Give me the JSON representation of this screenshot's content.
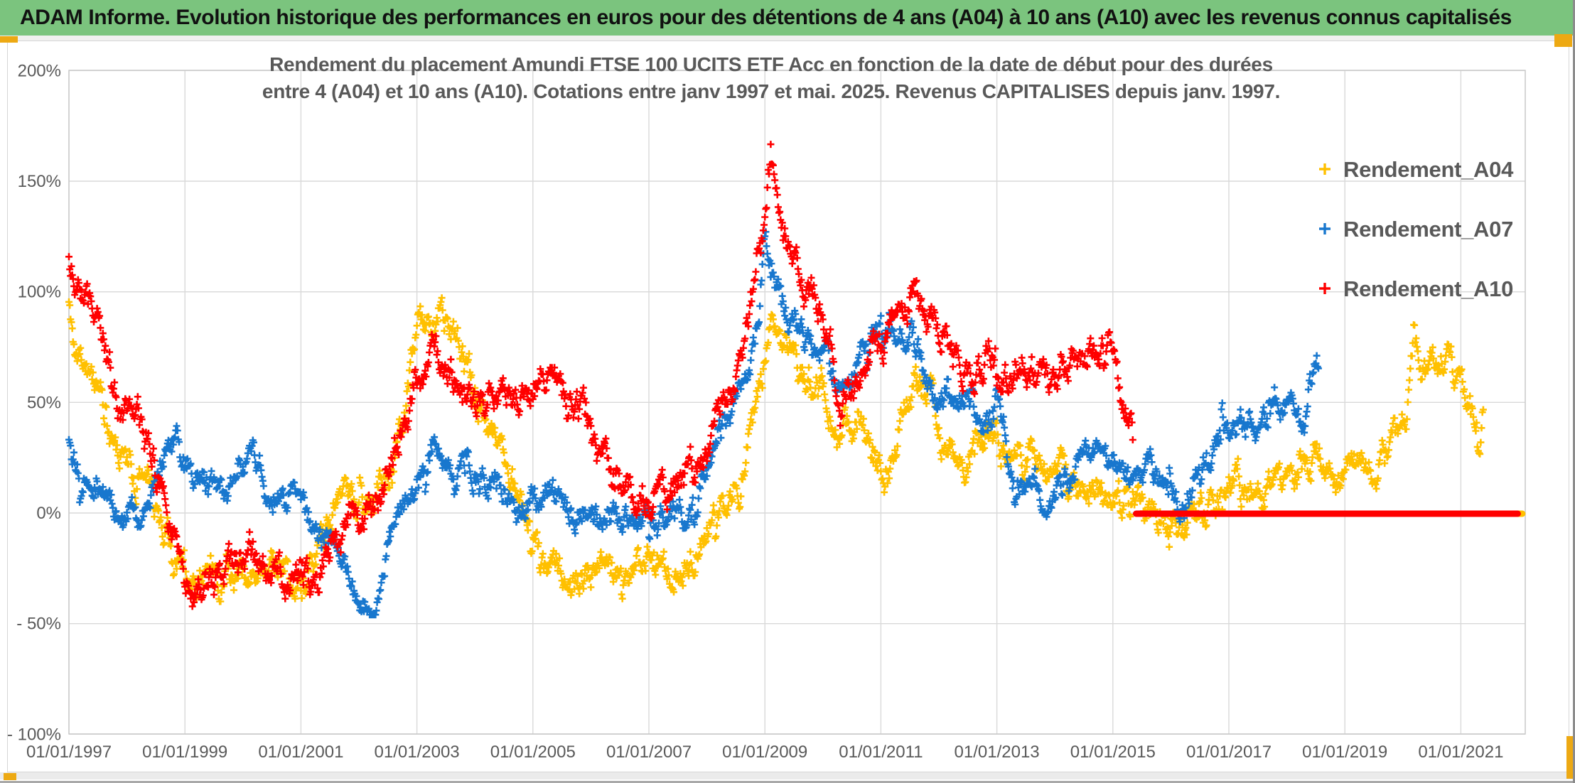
{
  "header": {
    "title": "ADAM Informe. Evolution historique des performances en euros pour des détentions de 4 ans (A04) à 10 ans (A10) avec les revenus connus capitalisés",
    "bg_color": "#7bc47e"
  },
  "accents": {
    "color": "#eda913"
  },
  "chart_data": {
    "type": "scatter",
    "marker": "plus",
    "title_line1": "Rendement du placement Amundi FTSE 100 UCITS ETF Acc en fonction de la date de début pour des durées",
    "title_line2": "entre 4 (A04) et 10 ans (A10). Cotations entre janv 1997 et mai. 2025. Revenus CAPITALISES depuis janv. 1997.",
    "title_color": "#595959",
    "grid": true,
    "grid_color": "#d9d9d9",
    "axis_label_color": "#595959",
    "x_axis": {
      "tick_years": [
        1997,
        1999,
        2001,
        2003,
        2005,
        2007,
        2009,
        2011,
        2013,
        2015,
        2017,
        2019,
        2021
      ],
      "tick_labels": [
        "01/01/1997",
        "01/01/1999",
        "01/01/2001",
        "01/01/2003",
        "01/01/2005",
        "01/01/2007",
        "01/01/2009",
        "01/01/2011",
        "01/01/2013",
        "01/01/2015",
        "01/01/2017",
        "01/01/2019",
        "01/01/2021"
      ],
      "range_years": [
        1997.0,
        2022.12
      ]
    },
    "y_axis": {
      "tick_values": [
        200,
        150,
        100,
        50,
        0,
        -50,
        -100
      ],
      "tick_labels": [
        "200%",
        "150%",
        "100%",
        "50%",
        "0%",
        "- 50%",
        "- 100%"
      ],
      "range_pct": [
        -100,
        200
      ]
    },
    "legend": {
      "position": "right",
      "entries": [
        {
          "label": "Rendement_A04",
          "color": "#FFC000"
        },
        {
          "label": "Rendement_A07",
          "color": "#1877CE"
        },
        {
          "label": "Rendement_A10",
          "color": "#FF0000"
        }
      ]
    },
    "series": [
      {
        "name": "Rendement_A04",
        "color": "#FFC000",
        "noise": 5.5,
        "seed": 11,
        "clamp": [
          -40,
          104
        ],
        "zero_segment": [
          2021.46,
          2022.06
        ],
        "keypoints": [
          [
            1997.0,
            95
          ],
          [
            1997.15,
            72
          ],
          [
            1997.35,
            60
          ],
          [
            1997.55,
            48
          ],
          [
            1997.75,
            30
          ],
          [
            1998.0,
            22
          ],
          [
            1998.3,
            12
          ],
          [
            1998.55,
            0
          ],
          [
            1998.8,
            -15
          ],
          [
            1999.05,
            -24
          ],
          [
            1999.3,
            -27
          ],
          [
            1999.6,
            -27
          ],
          [
            1999.9,
            -28
          ],
          [
            2000.2,
            -24
          ],
          [
            2000.45,
            -28
          ],
          [
            2000.7,
            -26
          ],
          [
            2001.0,
            -28
          ],
          [
            2001.3,
            -22
          ],
          [
            2001.6,
            2
          ],
          [
            2001.8,
            10
          ],
          [
            2002.0,
            4
          ],
          [
            2002.3,
            6
          ],
          [
            2002.55,
            15
          ],
          [
            2002.8,
            45
          ],
          [
            2003.05,
            92
          ],
          [
            2003.3,
            85
          ],
          [
            2003.55,
            84
          ],
          [
            2003.8,
            72
          ],
          [
            2004.0,
            52
          ],
          [
            2004.25,
            38
          ],
          [
            2004.5,
            22
          ],
          [
            2004.75,
            8
          ],
          [
            2005.0,
            -8
          ],
          [
            2005.2,
            -20
          ],
          [
            2005.45,
            -30
          ],
          [
            2005.7,
            -34
          ],
          [
            2006.0,
            -27
          ],
          [
            2006.3,
            -25
          ],
          [
            2006.6,
            -24
          ],
          [
            2007.0,
            -24
          ],
          [
            2007.3,
            -28
          ],
          [
            2007.55,
            -30
          ],
          [
            2007.8,
            -18
          ],
          [
            2008.05,
            -3
          ],
          [
            2008.3,
            -2
          ],
          [
            2008.55,
            8
          ],
          [
            2008.75,
            30
          ],
          [
            2008.95,
            62
          ],
          [
            2009.1,
            92
          ],
          [
            2009.25,
            80
          ],
          [
            2009.45,
            70
          ],
          [
            2009.65,
            62
          ],
          [
            2009.85,
            55
          ],
          [
            2010.05,
            50
          ],
          [
            2010.25,
            32
          ],
          [
            2010.45,
            40
          ],
          [
            2010.65,
            42
          ],
          [
            2010.85,
            25
          ],
          [
            2011.05,
            15
          ],
          [
            2011.25,
            30
          ],
          [
            2011.45,
            50
          ],
          [
            2011.65,
            60
          ],
          [
            2011.85,
            52
          ],
          [
            2012.05,
            25
          ],
          [
            2012.3,
            22
          ],
          [
            2012.55,
            25
          ],
          [
            2012.8,
            28
          ],
          [
            2013.0,
            35
          ],
          [
            2013.2,
            28
          ],
          [
            2013.45,
            25
          ],
          [
            2013.7,
            22
          ],
          [
            2014.0,
            18
          ],
          [
            2014.3,
            15
          ],
          [
            2014.6,
            12
          ],
          [
            2014.9,
            6
          ],
          [
            2015.15,
            2
          ],
          [
            2015.4,
            3
          ],
          [
            2015.7,
            -2
          ],
          [
            2016.0,
            -5
          ],
          [
            2016.2,
            -14
          ],
          [
            2016.45,
            0
          ],
          [
            2016.7,
            10
          ],
          [
            2017.0,
            14
          ],
          [
            2017.3,
            10
          ],
          [
            2017.6,
            8
          ],
          [
            2017.9,
            15
          ],
          [
            2018.2,
            22
          ],
          [
            2018.5,
            25
          ],
          [
            2018.8,
            15
          ],
          [
            2019.1,
            18
          ],
          [
            2019.4,
            22
          ],
          [
            2019.7,
            28
          ],
          [
            2019.95,
            35
          ],
          [
            2020.1,
            55
          ],
          [
            2020.2,
            80
          ],
          [
            2020.35,
            65
          ],
          [
            2020.55,
            65
          ],
          [
            2020.75,
            68
          ],
          [
            2020.95,
            62
          ],
          [
            2021.1,
            50
          ],
          [
            2021.25,
            42
          ],
          [
            2021.4,
            40
          ]
        ]
      },
      {
        "name": "Rendement_A07",
        "color": "#1877CE",
        "noise": 4.5,
        "seed": 22,
        "clamp": [
          -46,
          137
        ],
        "zero_segment": null,
        "keypoints": [
          [
            1997.0,
            33
          ],
          [
            1997.2,
            22
          ],
          [
            1997.45,
            15
          ],
          [
            1997.7,
            5
          ],
          [
            1998.0,
            2
          ],
          [
            1998.25,
            0
          ],
          [
            1998.5,
            15
          ],
          [
            1998.75,
            33
          ],
          [
            1998.95,
            25
          ],
          [
            1999.2,
            18
          ],
          [
            1999.45,
            12
          ],
          [
            1999.7,
            5
          ],
          [
            1999.95,
            22
          ],
          [
            2000.15,
            28
          ],
          [
            2000.4,
            12
          ],
          [
            2000.7,
            8
          ],
          [
            2001.0,
            0
          ],
          [
            2001.25,
            -5
          ],
          [
            2001.55,
            -15
          ],
          [
            2001.8,
            -25
          ],
          [
            2002.05,
            -35
          ],
          [
            2002.3,
            -43
          ],
          [
            2002.55,
            -10
          ],
          [
            2002.75,
            2
          ],
          [
            2003.0,
            15
          ],
          [
            2003.2,
            32
          ],
          [
            2003.4,
            28
          ],
          [
            2003.6,
            20
          ],
          [
            2003.85,
            18
          ],
          [
            2004.1,
            15
          ],
          [
            2004.4,
            12
          ],
          [
            2004.7,
            3
          ],
          [
            2005.0,
            3
          ],
          [
            2005.3,
            8
          ],
          [
            2005.6,
            0
          ],
          [
            2005.9,
            -2
          ],
          [
            2006.2,
            -2
          ],
          [
            2006.5,
            -2
          ],
          [
            2006.8,
            -2
          ],
          [
            2007.1,
            -3
          ],
          [
            2007.4,
            -2
          ],
          [
            2007.7,
            2
          ],
          [
            2007.95,
            15
          ],
          [
            2008.2,
            35
          ],
          [
            2008.45,
            50
          ],
          [
            2008.7,
            60
          ],
          [
            2008.9,
            90
          ],
          [
            2009.0,
            128
          ],
          [
            2009.15,
            108
          ],
          [
            2009.35,
            92
          ],
          [
            2009.55,
            85
          ],
          [
            2009.75,
            75
          ],
          [
            2010.0,
            72
          ],
          [
            2010.2,
            60
          ],
          [
            2010.4,
            65
          ],
          [
            2010.6,
            70
          ],
          [
            2010.8,
            78
          ],
          [
            2011.0,
            80
          ],
          [
            2011.2,
            72
          ],
          [
            2011.4,
            78
          ],
          [
            2011.55,
            82
          ],
          [
            2011.75,
            65
          ],
          [
            2011.95,
            50
          ],
          [
            2012.15,
            55
          ],
          [
            2012.35,
            58
          ],
          [
            2012.6,
            45
          ],
          [
            2012.85,
            38
          ],
          [
            2013.05,
            52
          ],
          [
            2013.25,
            15
          ],
          [
            2013.5,
            12
          ],
          [
            2013.75,
            10
          ],
          [
            2014.0,
            8
          ],
          [
            2014.25,
            18
          ],
          [
            2014.5,
            25
          ],
          [
            2014.75,
            28
          ],
          [
            2015.0,
            30
          ],
          [
            2015.25,
            18
          ],
          [
            2015.5,
            15
          ],
          [
            2015.75,
            20
          ],
          [
            2016.0,
            10
          ],
          [
            2016.15,
            -5
          ],
          [
            2016.35,
            8
          ],
          [
            2016.6,
            25
          ],
          [
            2016.85,
            35
          ],
          [
            2017.1,
            40
          ],
          [
            2017.35,
            42
          ],
          [
            2017.6,
            38
          ],
          [
            2017.85,
            45
          ],
          [
            2018.1,
            50
          ],
          [
            2018.3,
            45
          ],
          [
            2018.45,
            60
          ],
          [
            2018.55,
            70
          ]
        ]
      },
      {
        "name": "Rendement_A10",
        "color": "#FF0000",
        "noise": 5.5,
        "seed": 33,
        "clamp": [
          -46,
          176
        ],
        "zero_segment": [
          2015.4,
          2021.98
        ],
        "keypoints": [
          [
            1997.0,
            115
          ],
          [
            1997.15,
            100
          ],
          [
            1997.35,
            92
          ],
          [
            1997.55,
            75
          ],
          [
            1997.75,
            55
          ],
          [
            1997.95,
            48
          ],
          [
            1998.15,
            55
          ],
          [
            1998.35,
            30
          ],
          [
            1998.55,
            18
          ],
          [
            1998.75,
            -5
          ],
          [
            1998.95,
            -25
          ],
          [
            1999.15,
            -40
          ],
          [
            1999.4,
            -32
          ],
          [
            1999.65,
            -28
          ],
          [
            1999.9,
            -20
          ],
          [
            2000.15,
            -22
          ],
          [
            2000.4,
            -28
          ],
          [
            2000.65,
            -25
          ],
          [
            2000.9,
            -25
          ],
          [
            2001.15,
            -28
          ],
          [
            2001.4,
            -20
          ],
          [
            2001.6,
            -8
          ],
          [
            2001.8,
            -3
          ],
          [
            2002.0,
            -2
          ],
          [
            2002.25,
            2
          ],
          [
            2002.5,
            18
          ],
          [
            2002.75,
            40
          ],
          [
            2003.0,
            62
          ],
          [
            2003.2,
            70
          ],
          [
            2003.45,
            65
          ],
          [
            2003.7,
            62
          ],
          [
            2003.95,
            55
          ],
          [
            2004.2,
            52
          ],
          [
            2004.45,
            55
          ],
          [
            2004.7,
            58
          ],
          [
            2004.95,
            55
          ],
          [
            2005.15,
            65
          ],
          [
            2005.35,
            70
          ],
          [
            2005.6,
            55
          ],
          [
            2005.85,
            42
          ],
          [
            2006.1,
            28
          ],
          [
            2006.35,
            15
          ],
          [
            2006.6,
            12
          ],
          [
            2006.9,
            10
          ],
          [
            2007.2,
            10
          ],
          [
            2007.5,
            12
          ],
          [
            2007.75,
            20
          ],
          [
            2008.0,
            28
          ],
          [
            2008.2,
            42
          ],
          [
            2008.45,
            55
          ],
          [
            2008.65,
            75
          ],
          [
            2008.85,
            110
          ],
          [
            2009.0,
            145
          ],
          [
            2009.1,
            165
          ],
          [
            2009.25,
            135
          ],
          [
            2009.4,
            120
          ],
          [
            2009.6,
            108
          ],
          [
            2009.8,
            102
          ],
          [
            2010.0,
            85
          ],
          [
            2010.15,
            75
          ],
          [
            2010.3,
            40
          ],
          [
            2010.45,
            55
          ],
          [
            2010.6,
            60
          ],
          [
            2010.8,
            70
          ],
          [
            2011.0,
            75
          ],
          [
            2011.2,
            85
          ],
          [
            2011.4,
            95
          ],
          [
            2011.6,
            100
          ],
          [
            2011.85,
            90
          ],
          [
            2012.05,
            82
          ],
          [
            2012.25,
            75
          ],
          [
            2012.45,
            68
          ],
          [
            2012.65,
            60
          ],
          [
            2012.85,
            68
          ],
          [
            2013.05,
            68
          ],
          [
            2013.25,
            62
          ],
          [
            2013.45,
            68
          ],
          [
            2013.65,
            65
          ],
          [
            2013.9,
            58
          ],
          [
            2014.1,
            62
          ],
          [
            2014.35,
            65
          ],
          [
            2014.6,
            70
          ],
          [
            2014.85,
            75
          ],
          [
            2015.05,
            72
          ],
          [
            2015.2,
            50
          ],
          [
            2015.35,
            38
          ]
        ]
      }
    ]
  }
}
